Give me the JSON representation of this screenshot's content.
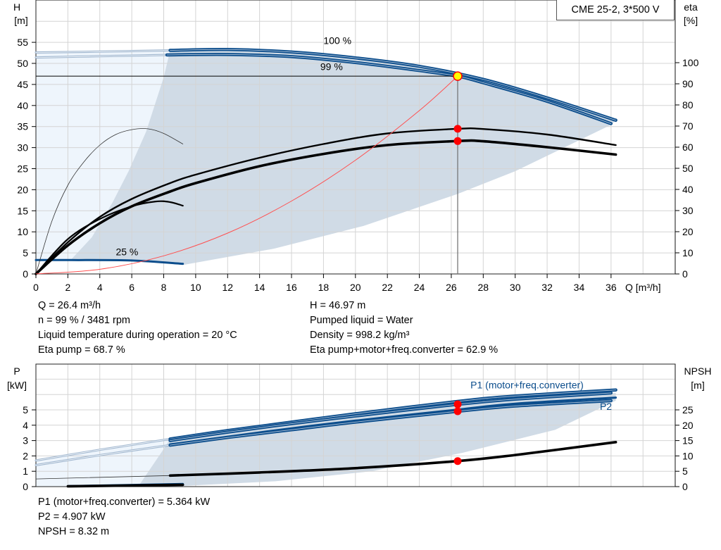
{
  "model_label": "CME 25-2, 3*500 V",
  "colors": {
    "blue": "#0b4d8c",
    "light_blue": "#9fb6cf",
    "shade_dark": "#d0dbe6",
    "shade_light": "#eef5fc",
    "grid": "#d4d4d4",
    "red": "#ff0000",
    "duty_fill": "#ffff00",
    "system": "#ff5050"
  },
  "chart_data": [
    {
      "type": "line",
      "title": "",
      "xlabel": "Q [m³/h]",
      "ylabel_left": {
        "name": "H",
        "unit": "[m]"
      },
      "ylabel_right": {
        "name": "eta",
        "unit": "[%]"
      },
      "xlim": [
        0,
        40
      ],
      "ylim_left": [
        0,
        65
      ],
      "ylim_right": [
        0,
        129.5
      ],
      "xticks": [
        0,
        2,
        4,
        6,
        8,
        10,
        12,
        14,
        16,
        18,
        20,
        22,
        24,
        26,
        28,
        30,
        32,
        34,
        36
      ],
      "yticks_left": [
        0,
        5,
        10,
        15,
        20,
        25,
        30,
        35,
        40,
        45,
        50,
        55
      ],
      "yticks_right": [
        0,
        10,
        20,
        30,
        40,
        50,
        60,
        70,
        80,
        90,
        100
      ],
      "grid": true,
      "curve_labels": [
        {
          "text": "100 %",
          "q": 18,
          "h": 54.6
        },
        {
          "text": "99 %",
          "q": 17.8,
          "h": 53.1
        },
        {
          "text": "25 %",
          "q": 5,
          "h": 4.4
        }
      ],
      "regions": [
        {
          "name": "operating-range-light",
          "fill": "shade_light",
          "axis": "H",
          "points": [
            [
              0,
              3.3
            ],
            [
              0,
              52.6
            ],
            [
              8.4,
              53.1
            ],
            [
              8.4,
              3.3
            ]
          ]
        },
        {
          "name": "operating-range",
          "fill": "shade_dark",
          "axis": "H",
          "points": [
            [
              2.15,
              3.2
            ],
            [
              3.5,
              8.7
            ],
            [
              4.8,
              17
            ],
            [
              5.8,
              24.4
            ],
            [
              6.9,
              33.8
            ],
            [
              8.0,
              46.7
            ],
            [
              8.4,
              53.1
            ],
            [
              12,
              53.3
            ],
            [
              16,
              52.7
            ],
            [
              20,
              51.3
            ],
            [
              24,
              49.3
            ],
            [
              28,
              46.2
            ],
            [
              32,
              41.8
            ],
            [
              36.3,
              36.5
            ],
            [
              36,
              35.4
            ],
            [
              30,
              24.4
            ],
            [
              26.4,
              19
            ],
            [
              20.5,
              11.4
            ],
            [
              14.9,
              6
            ],
            [
              9.3,
              2.2
            ],
            [
              6,
              3.2
            ]
          ]
        }
      ],
      "series": [
        {
          "id": "h-100-ext",
          "axis": "H",
          "style": "light",
          "points": [
            [
              0,
              52.6
            ],
            [
              4,
              52.8
            ],
            [
              8.4,
              53.1
            ]
          ]
        },
        {
          "id": "h-99-ext",
          "axis": "H",
          "style": "light",
          "points": [
            [
              0,
              51.4
            ],
            [
              4,
              51.7
            ],
            [
              8.2,
              52.0
            ]
          ]
        },
        {
          "id": "h-100",
          "axis": "H",
          "style": "blue",
          "points": [
            [
              8.4,
              53.1
            ],
            [
              12,
              53.3
            ],
            [
              16,
              52.7
            ],
            [
              20,
              51.3
            ],
            [
              24,
              49.3
            ],
            [
              28,
              46.2
            ],
            [
              32,
              41.8
            ],
            [
              36.3,
              36.5
            ]
          ]
        },
        {
          "id": "h-99",
          "axis": "H",
          "style": "blue",
          "points": [
            [
              8.2,
              52.0
            ],
            [
              12,
              52.1
            ],
            [
              16,
              51.6
            ],
            [
              20,
              50.2
            ],
            [
              24,
              48.3
            ],
            [
              26.4,
              46.97
            ],
            [
              28,
              45.4
            ],
            [
              32,
              41.0
            ],
            [
              36,
              35.7
            ]
          ]
        },
        {
          "id": "h-25",
          "axis": "H",
          "style": "blue-thin",
          "points": [
            [
              0,
              3.3
            ],
            [
              2.2,
              3.3
            ],
            [
              6,
              3.2
            ],
            [
              9.2,
              2.4
            ]
          ]
        },
        {
          "id": "eta-pump",
          "axis": "eta",
          "style": "black",
          "points": [
            [
              0,
              0
            ],
            [
              2,
              15
            ],
            [
              4,
              27
            ],
            [
              6,
              35.5
            ],
            [
              8.4,
              43
            ],
            [
              10,
              47
            ],
            [
              14,
              55
            ],
            [
              18,
              61.5
            ],
            [
              22,
              66.5
            ],
            [
              26.4,
              68.7
            ],
            [
              28,
              68.6
            ],
            [
              32,
              66
            ],
            [
              36.3,
              61
            ]
          ]
        },
        {
          "id": "eta-total",
          "axis": "eta",
          "style": "black-thick",
          "points": [
            [
              0,
              0
            ],
            [
              2,
              13.5
            ],
            [
              4,
              24
            ],
            [
              6,
              32
            ],
            [
              8.4,
              39
            ],
            [
              10,
              43
            ],
            [
              14,
              51
            ],
            [
              18,
              56.8
            ],
            [
              22,
              61
            ],
            [
              26.4,
              62.9
            ],
            [
              28,
              62.8
            ],
            [
              32,
              60
            ],
            [
              36.3,
              56.5
            ]
          ]
        },
        {
          "id": "eta-pump-25",
          "axis": "eta",
          "style": "thin",
          "points": [
            [
              0,
              0
            ],
            [
              1,
              25
            ],
            [
              2,
              42
            ],
            [
              3,
              53
            ],
            [
              4,
              61
            ],
            [
              5,
              66
            ],
            [
              6,
              68.3
            ],
            [
              7,
              68.7
            ],
            [
              8,
              66.5
            ],
            [
              9.2,
              61.5
            ]
          ]
        },
        {
          "id": "eta-total-25",
          "axis": "eta",
          "style": "black-mid",
          "points": [
            [
              0,
              0
            ],
            [
              2,
              16.5
            ],
            [
              4,
              26
            ],
            [
              6,
              32
            ],
            [
              7.5,
              34.3
            ],
            [
              8.4,
              34
            ],
            [
              9.2,
              32.3
            ]
          ]
        },
        {
          "id": "system-curve",
          "axis": "H",
          "style": "red",
          "points": [
            [
              0,
              0
            ],
            [
              4,
              1.1
            ],
            [
              8,
              4.3
            ],
            [
              12,
              9.7
            ],
            [
              16,
              17.3
            ],
            [
              20,
              27
            ],
            [
              24,
              38.8
            ],
            [
              26.4,
              46.97
            ]
          ]
        }
      ],
      "duty_point": {
        "q": 26.4,
        "h": 46.97,
        "eta_pump": 68.7,
        "eta_total": 62.9
      }
    },
    {
      "type": "line",
      "xlim": [
        0,
        40
      ],
      "ylim_left": [
        0,
        8
      ],
      "ylim_right": [
        0,
        40
      ],
      "ylabel_left": {
        "name": "P",
        "unit": "[kW]"
      },
      "ylabel_right": {
        "name": "NPSH",
        "unit": "[m]"
      },
      "yticks_left": [
        0,
        1,
        2,
        3,
        4,
        5
      ],
      "yticks_right": [
        0,
        5,
        10,
        15,
        20,
        25
      ],
      "grid": true,
      "curve_labels": [
        {
          "text": "P1 (motor+freq.converter)",
          "q": 27.2,
          "p": 6.4,
          "color": "blue"
        },
        {
          "text": "P2",
          "q": 35.3,
          "p": 5.0,
          "color": "blue"
        }
      ],
      "regions": [
        {
          "name": "power-range-light",
          "fill": "shade_light",
          "axis": "P",
          "points": [
            [
              0,
              0
            ],
            [
              0,
              1.7
            ],
            [
              8.4,
              3.1
            ],
            [
              7.9,
              2.3
            ],
            [
              6.4,
              0
            ]
          ]
        },
        {
          "name": "power-range",
          "fill": "shade_dark",
          "axis": "P",
          "points": [
            [
              6.4,
              0
            ],
            [
              7.9,
              2.3
            ],
            [
              8.4,
              3.1
            ],
            [
              12,
              3.6
            ],
            [
              16,
              4.15
            ],
            [
              20,
              4.65
            ],
            [
              26.4,
              5.45
            ],
            [
              30,
              5.85
            ],
            [
              36.3,
              6.1
            ],
            [
              36.3,
              5.6
            ],
            [
              32.5,
              3.7
            ],
            [
              26.7,
              2.2
            ],
            [
              21,
              1.0
            ],
            [
              15,
              0.35
            ],
            [
              9.3,
              0.05
            ]
          ]
        }
      ],
      "series": [
        {
          "id": "p1-ext",
          "axis": "P",
          "style": "light",
          "points": [
            [
              0,
              1.7
            ],
            [
              4,
              2.4
            ],
            [
              8.4,
              3.1
            ]
          ]
        },
        {
          "id": "p2-ext",
          "axis": "P",
          "style": "light",
          "points": [
            [
              0,
              1.4
            ],
            [
              4,
              2.05
            ],
            [
              8.4,
              2.7
            ]
          ]
        },
        {
          "id": "p1-100",
          "axis": "P",
          "style": "blue",
          "points": [
            [
              8.4,
              3.1
            ],
            [
              12,
              3.65
            ],
            [
              16,
              4.2
            ],
            [
              20,
              4.75
            ],
            [
              26.4,
              5.55
            ],
            [
              30,
              5.9
            ],
            [
              36.3,
              6.3
            ]
          ]
        },
        {
          "id": "p1-99",
          "axis": "P",
          "style": "blue",
          "points": [
            [
              8.4,
              3.0
            ],
            [
              12,
              3.55
            ],
            [
              16,
              4.1
            ],
            [
              20,
              4.6
            ],
            [
              26.4,
              5.364
            ],
            [
              30,
              5.7
            ],
            [
              36,
              6.1
            ]
          ]
        },
        {
          "id": "p2-100",
          "axis": "P",
          "style": "blue-thin",
          "points": [
            [
              8.4,
              2.75
            ],
            [
              12,
              3.25
            ],
            [
              16,
              3.8
            ],
            [
              20,
              4.3
            ],
            [
              26.4,
              5.02
            ],
            [
              30,
              5.4
            ],
            [
              36.3,
              5.8
            ]
          ]
        },
        {
          "id": "p2-99",
          "axis": "P",
          "style": "blue",
          "points": [
            [
              8.4,
              2.7
            ],
            [
              12,
              3.2
            ],
            [
              16,
              3.7
            ],
            [
              20,
              4.2
            ],
            [
              26.4,
              4.907
            ],
            [
              30,
              5.25
            ],
            [
              36,
              5.6
            ]
          ]
        },
        {
          "id": "p-25",
          "axis": "P",
          "style": "blue-thin",
          "points": [
            [
              2,
              0.03
            ],
            [
              9.2,
              0.17
            ]
          ]
        },
        {
          "id": "npsh-ext",
          "axis": "NPSH",
          "style": "thin",
          "points": [
            [
              0,
              2.5
            ],
            [
              8.4,
              3.6
            ]
          ]
        },
        {
          "id": "npsh",
          "axis": "NPSH",
          "style": "black-thick",
          "points": [
            [
              8.4,
              3.6
            ],
            [
              14,
              4.6
            ],
            [
              20,
              6.0
            ],
            [
              26.4,
              8.32
            ],
            [
              30,
              10.3
            ],
            [
              36.3,
              14.5
            ]
          ]
        },
        {
          "id": "npsh-25",
          "axis": "NPSH",
          "style": "black-thick",
          "points": [
            [
              2,
              0.1
            ],
            [
              9.2,
              0.6
            ]
          ]
        }
      ],
      "duty_points": {
        "q": 26.4,
        "p1": 5.364,
        "p2": 4.907,
        "npsh": 8.32
      }
    }
  ],
  "top_info": {
    "left": [
      "Q = 26.4 m³/h",
      "n = 99 % / 3481 rpm",
      "Liquid temperature during operation = 20 °C",
      "Eta pump = 68.7 %"
    ],
    "right": [
      "H = 46.97 m",
      "Pumped liquid = Water",
      "Density = 998.2 kg/m³",
      "Eta pump+motor+freq.converter = 62.9 %"
    ]
  },
  "bottom_info": [
    "P1 (motor+freq.converter) = 5.364 kW",
    "P2 = 4.907 kW",
    "NPSH = 8.32 m"
  ]
}
